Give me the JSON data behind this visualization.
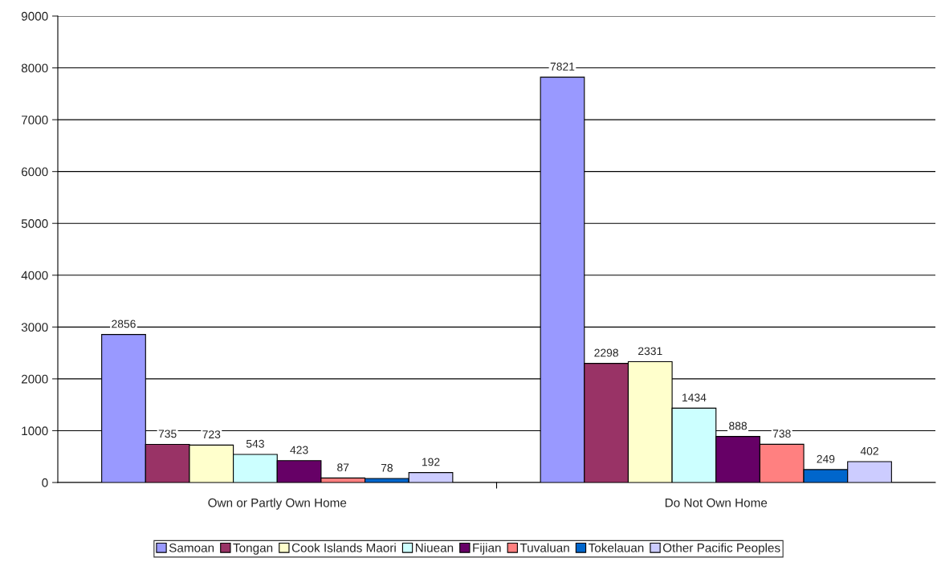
{
  "chart_data": {
    "type": "bar",
    "categories": [
      "Own or Partly Own Home",
      "Do Not Own Home"
    ],
    "series": [
      {
        "name": "Samoan",
        "color": "#9999ff",
        "values": [
          2856,
          7821
        ]
      },
      {
        "name": "Tongan",
        "color": "#993366",
        "values": [
          735,
          2298
        ]
      },
      {
        "name": "Cook Islands Maori",
        "color": "#ffffcc",
        "values": [
          723,
          2331
        ]
      },
      {
        "name": "Niuean",
        "color": "#ccffff",
        "values": [
          543,
          1434
        ]
      },
      {
        "name": "Fijian",
        "color": "#660066",
        "values": [
          423,
          888
        ]
      },
      {
        "name": "Tuvaluan",
        "color": "#ff8080",
        "values": [
          87,
          738
        ]
      },
      {
        "name": "Tokelauan",
        "color": "#0066cc",
        "values": [
          78,
          249
        ]
      },
      {
        "name": "Other Pacific Peoples",
        "color": "#ccccff",
        "values": [
          192,
          402
        ]
      }
    ],
    "ylim": [
      0,
      9000
    ],
    "yticks": [
      0,
      1000,
      2000,
      3000,
      4000,
      5000,
      6000,
      7000,
      8000,
      9000
    ],
    "grid": "y",
    "legend": "bottom",
    "data_labels": true
  }
}
